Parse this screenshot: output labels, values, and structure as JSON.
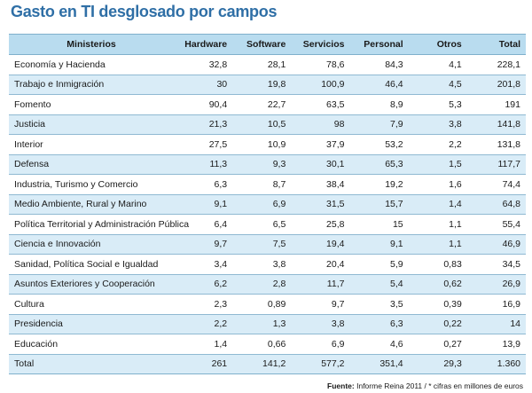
{
  "title": "Gasto en TI desglosado por campos",
  "table": {
    "headers": [
      "Ministerios",
      "Hardware",
      "Software",
      "Servicios",
      "Personal",
      "Otros",
      "Total"
    ],
    "rows": [
      [
        "Economía y Hacienda",
        "32,8",
        "28,1",
        "78,6",
        "84,3",
        "4,1",
        "228,1"
      ],
      [
        "Trabajo e Inmigración",
        "30",
        "19,8",
        "100,9",
        "46,4",
        "4,5",
        "201,8"
      ],
      [
        "Fomento",
        "90,4",
        "22,7",
        "63,5",
        "8,9",
        "5,3",
        "191"
      ],
      [
        "Justicia",
        "21,3",
        "10,5",
        "98",
        "7,9",
        "3,8",
        "141,8"
      ],
      [
        "Interior",
        "27,5",
        "10,9",
        "37,9",
        "53,2",
        "2,2",
        "131,8"
      ],
      [
        "Defensa",
        "11,3",
        "9,3",
        "30,1",
        "65,3",
        "1,5",
        "117,7"
      ],
      [
        "Industria, Turismo y Comercio",
        "6,3",
        "8,7",
        "38,4",
        "19,2",
        "1,6",
        "74,4"
      ],
      [
        "Medio Ambiente, Rural y Marino",
        "9,1",
        "6,9",
        "31,5",
        "15,7",
        "1,4",
        "64,8"
      ],
      [
        "Política Territorial y Administración Pública",
        "6,4",
        "6,5",
        "25,8",
        "15",
        "1,1",
        "55,4"
      ],
      [
        "Ciencia e Innovación",
        "9,7",
        "7,5",
        "19,4",
        "9,1",
        "1,1",
        "46,9"
      ],
      [
        "Sanidad, Política Social e Igualdad",
        "3,4",
        "3,8",
        "20,4",
        "5,9",
        "0,83",
        "34,5"
      ],
      [
        "Asuntos Exteriores y Cooperación",
        "6,2",
        "2,8",
        "11,7",
        "5,4",
        "0,62",
        "26,9"
      ],
      [
        "Cultura",
        "2,3",
        "0,89",
        "9,7",
        "3,5",
        "0,39",
        "16,9"
      ],
      [
        "Presidencia",
        "2,2",
        "1,3",
        "3,8",
        "6,3",
        "0,22",
        "14"
      ],
      [
        "Educación",
        "1,4",
        "0,66",
        "6,9",
        "4,6",
        "0,27",
        "13,9"
      ],
      [
        "Total",
        "261",
        "141,2",
        "577,2",
        "351,4",
        "29,3",
        "1.360"
      ]
    ]
  },
  "source": {
    "label": "Fuente:",
    "text": " Informe Reina 2011 / * cifras en millones de euros"
  },
  "colors": {
    "title": "#2f6fa6",
    "header_bg": "#b9dcef",
    "stripe_bg": "#d9ecf7",
    "rule": "#8fb9d2"
  }
}
